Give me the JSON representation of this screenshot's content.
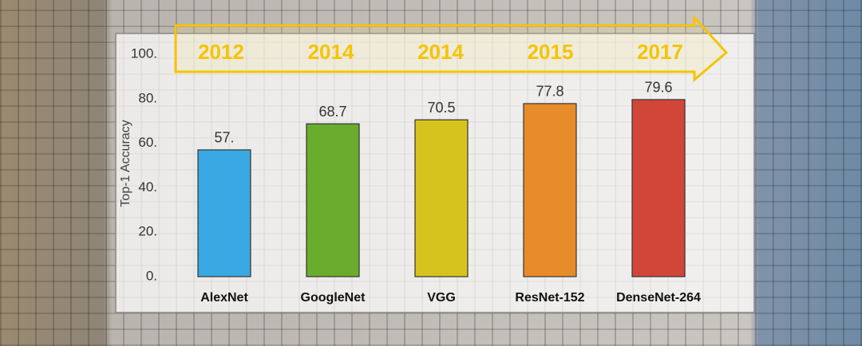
{
  "chart_data": {
    "type": "bar",
    "ylabel": "Top-1 Accuracy",
    "categories": [
      "AlexNet",
      "GoogleNet",
      "VGG",
      "ResNet-152",
      "DenseNet-264"
    ],
    "years": [
      "2012",
      "2014",
      "2014",
      "2015",
      "2017"
    ],
    "values": [
      57,
      68.7,
      70.5,
      77.8,
      79.6
    ],
    "value_labels": [
      "57.",
      "68.7",
      "70.5",
      "77.8",
      "79.6"
    ],
    "colors": [
      "#3aa8e2",
      "#6aac2c",
      "#d6c31e",
      "#e88b2a",
      "#d2463a"
    ],
    "ylim": [
      0,
      100
    ],
    "yticks": [
      {
        "value": 0,
        "label": "0."
      },
      {
        "value": 20,
        "label": "20."
      },
      {
        "value": 40,
        "label": "40."
      },
      {
        "value": 60,
        "label": "60."
      },
      {
        "value": 80,
        "label": "80."
      },
      {
        "value": 100,
        "label": "100."
      }
    ]
  }
}
